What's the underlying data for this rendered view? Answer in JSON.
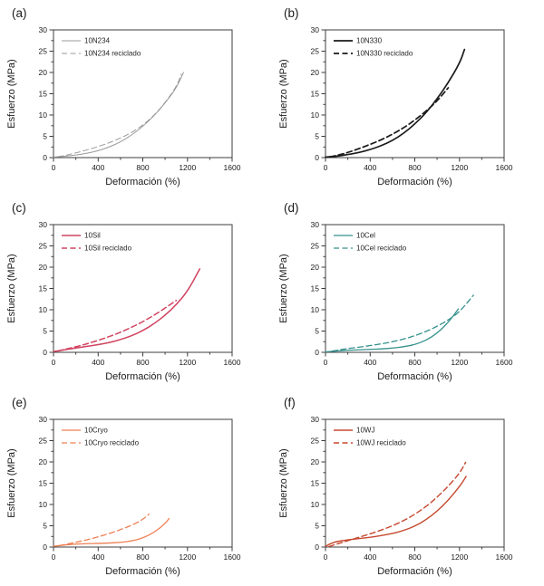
{
  "figure": {
    "background": "#ffffff",
    "frame_color": "#3c3c3c",
    "text_color": "#1a1a1a"
  },
  "chart_data": [
    {
      "type": "line",
      "panel": "(a)",
      "xlabel": "Deformación (%)",
      "ylabel": "Esfuerzo (MPa)",
      "xlim": [
        0,
        1600
      ],
      "ylim": [
        0,
        30
      ],
      "xticks": [
        0,
        400,
        800,
        1200,
        1600
      ],
      "yticks": [
        0,
        5,
        10,
        15,
        20,
        25,
        30
      ],
      "x_minor_step": 200,
      "y_minor_step": 2.5,
      "grid": false,
      "legend_position": "top-left-inside",
      "color": "#9a9a9a",
      "line_width": 1.0,
      "series": [
        {
          "name": "10N234",
          "style": "solid",
          "x": [
            0,
            100,
            200,
            300,
            400,
            500,
            600,
            700,
            800,
            900,
            1000,
            1100,
            1165
          ],
          "y": [
            0.1,
            0.3,
            0.6,
            1.0,
            1.6,
            2.5,
            3.7,
            5.3,
            7.3,
            9.8,
            12.8,
            16.3,
            20.0
          ]
        },
        {
          "name": "10N234 reciclado",
          "style": "dashed",
          "x": [
            40,
            100,
            200,
            300,
            400,
            500,
            600,
            700,
            800,
            900,
            1000,
            1100,
            1145
          ],
          "y": [
            0.2,
            0.5,
            1.1,
            1.8,
            2.6,
            3.5,
            4.6,
            5.9,
            7.6,
            9.9,
            12.9,
            16.6,
            19.6
          ]
        }
      ]
    },
    {
      "type": "line",
      "panel": "(b)",
      "xlabel": "Deformación (%)",
      "ylabel": "Esfuerzo (MPa)",
      "xlim": [
        0,
        1600
      ],
      "ylim": [
        0,
        30
      ],
      "xticks": [
        0,
        400,
        800,
        1200,
        1600
      ],
      "yticks": [
        0,
        5,
        10,
        15,
        20,
        25,
        30
      ],
      "x_minor_step": 200,
      "y_minor_step": 2.5,
      "grid": false,
      "legend_position": "top-left-inside",
      "color": "#1a1a1a",
      "line_width": 1.7,
      "series": [
        {
          "name": "10N330",
          "style": "solid",
          "x": [
            0,
            100,
            200,
            300,
            400,
            500,
            600,
            700,
            800,
            900,
            1000,
            1100,
            1200,
            1245
          ],
          "y": [
            0.1,
            0.3,
            0.7,
            1.2,
            1.9,
            2.8,
            4.0,
            5.7,
            7.9,
            10.5,
            13.8,
            17.6,
            22.1,
            25.4
          ]
        },
        {
          "name": "10N330 reciclado",
          "style": "dashed",
          "x": [
            40,
            100,
            200,
            300,
            400,
            500,
            600,
            700,
            800,
            900,
            1000,
            1100
          ],
          "y": [
            0.2,
            0.5,
            1.2,
            2.1,
            3.1,
            4.2,
            5.5,
            7.0,
            8.8,
            10.9,
            13.3,
            16.4
          ]
        }
      ]
    },
    {
      "type": "line",
      "panel": "(c)",
      "xlabel": "Deformación (%)",
      "ylabel": "Esfuerzo (MPa)",
      "xlim": [
        0,
        1600
      ],
      "ylim": [
        0,
        30
      ],
      "xticks": [
        0,
        400,
        800,
        1200,
        1600
      ],
      "yticks": [
        0,
        5,
        10,
        15,
        20,
        25,
        30
      ],
      "x_minor_step": 200,
      "y_minor_step": 2.5,
      "grid": false,
      "legend_position": "top-left-inside",
      "color": "#d04360",
      "line_width": 1.5,
      "series": [
        {
          "name": "10Sil",
          "style": "solid",
          "x": [
            0,
            100,
            200,
            300,
            400,
            500,
            600,
            700,
            800,
            900,
            1000,
            1100,
            1200,
            1310
          ],
          "y": [
            0.2,
            0.6,
            1.0,
            1.4,
            1.8,
            2.3,
            3.0,
            3.9,
            5.1,
            6.7,
            8.7,
            11.2,
            14.3,
            19.6
          ]
        },
        {
          "name": "10Sil reciclado",
          "style": "dashed",
          "x": [
            40,
            100,
            200,
            300,
            400,
            500,
            600,
            700,
            800,
            900,
            1000,
            1100
          ],
          "y": [
            0.3,
            0.7,
            1.3,
            2.0,
            2.8,
            3.7,
            4.7,
            5.9,
            7.2,
            8.7,
            10.4,
            12.2
          ]
        }
      ]
    },
    {
      "type": "line",
      "panel": "(d)",
      "xlabel": "Deformación (%)",
      "ylabel": "Esfuerzo (MPa)",
      "xlim": [
        0,
        1600
      ],
      "ylim": [
        0,
        30
      ],
      "xticks": [
        0,
        400,
        800,
        1200,
        1600
      ],
      "yticks": [
        0,
        5,
        10,
        15,
        20,
        25,
        30
      ],
      "x_minor_step": 200,
      "y_minor_step": 2.5,
      "grid": false,
      "legend_position": "top-left-inside",
      "color": "#35918d",
      "line_width": 1.3,
      "series": [
        {
          "name": "10Cel",
          "style": "solid",
          "x": [
            0,
            100,
            200,
            300,
            400,
            500,
            600,
            700,
            800,
            900,
            1000,
            1100,
            1190
          ],
          "y": [
            0.1,
            0.3,
            0.5,
            0.6,
            0.7,
            0.8,
            1.0,
            1.3,
            1.8,
            2.8,
            4.5,
            7.0,
            10.2
          ]
        },
        {
          "name": "10Cel reciclado",
          "style": "dashed",
          "x": [
            60,
            150,
            200,
            300,
            400,
            500,
            600,
            700,
            800,
            900,
            1000,
            1100,
            1200,
            1325
          ],
          "y": [
            0.3,
            0.7,
            0.9,
            1.2,
            1.6,
            2.0,
            2.5,
            3.1,
            3.9,
            4.9,
            6.1,
            7.6,
            9.5,
            13.4
          ]
        }
      ]
    },
    {
      "type": "line",
      "panel": "(e)",
      "xlabel": "Deformación (%)",
      "ylabel": "Esfuerzo (MPa)",
      "xlim": [
        0,
        1600
      ],
      "ylim": [
        0,
        30
      ],
      "xticks": [
        0,
        400,
        800,
        1200,
        1600
      ],
      "yticks": [
        0,
        5,
        10,
        15,
        20,
        25,
        30
      ],
      "x_minor_step": 200,
      "y_minor_step": 2.5,
      "grid": false,
      "legend_position": "top-left-inside",
      "color": "#ee7f52",
      "line_width": 1.3,
      "series": [
        {
          "name": "10Cryo",
          "style": "solid",
          "x": [
            0,
            100,
            200,
            300,
            400,
            500,
            600,
            700,
            800,
            900,
            1000,
            1035
          ],
          "y": [
            0.2,
            0.5,
            0.7,
            0.8,
            0.85,
            0.95,
            1.1,
            1.4,
            2.1,
            3.4,
            5.5,
            6.7
          ]
        },
        {
          "name": "10Cryo reciclado",
          "style": "dashed",
          "x": [
            50,
            100,
            200,
            300,
            400,
            500,
            600,
            700,
            800,
            855
          ],
          "y": [
            0.3,
            0.6,
            1.1,
            1.7,
            2.4,
            3.2,
            4.1,
            5.1,
            6.5,
            7.7
          ]
        }
      ]
    },
    {
      "type": "line",
      "panel": "(f)",
      "xlabel": "Deformación (%)",
      "ylabel": "Esfuerzo (MPa)",
      "xlim": [
        0,
        1600
      ],
      "ylim": [
        0,
        30
      ],
      "xticks": [
        0,
        400,
        800,
        1200,
        1600
      ],
      "yticks": [
        0,
        5,
        10,
        15,
        20,
        25,
        30
      ],
      "x_minor_step": 200,
      "y_minor_step": 2.5,
      "grid": false,
      "legend_position": "top-left-inside",
      "color": "#c5492f",
      "line_width": 1.4,
      "series": [
        {
          "name": "10WJ",
          "style": "solid",
          "x": [
            0,
            50,
            100,
            200,
            300,
            400,
            500,
            600,
            700,
            800,
            900,
            1000,
            1100,
            1200,
            1260
          ],
          "y": [
            0.2,
            0.9,
            1.3,
            1.7,
            2.0,
            2.3,
            2.7,
            3.2,
            3.9,
            4.9,
            6.4,
            8.4,
            11.0,
            14.2,
            16.6
          ]
        },
        {
          "name": "10WJ reciclado",
          "style": "dashed",
          "x": [
            30,
            100,
            200,
            300,
            400,
            500,
            600,
            700,
            800,
            900,
            1000,
            1100,
            1200,
            1255
          ],
          "y": [
            0.1,
            0.7,
            1.5,
            2.3,
            3.1,
            4.0,
            5.0,
            6.2,
            7.7,
            9.5,
            11.7,
            14.3,
            17.3,
            19.9
          ]
        }
      ]
    }
  ]
}
